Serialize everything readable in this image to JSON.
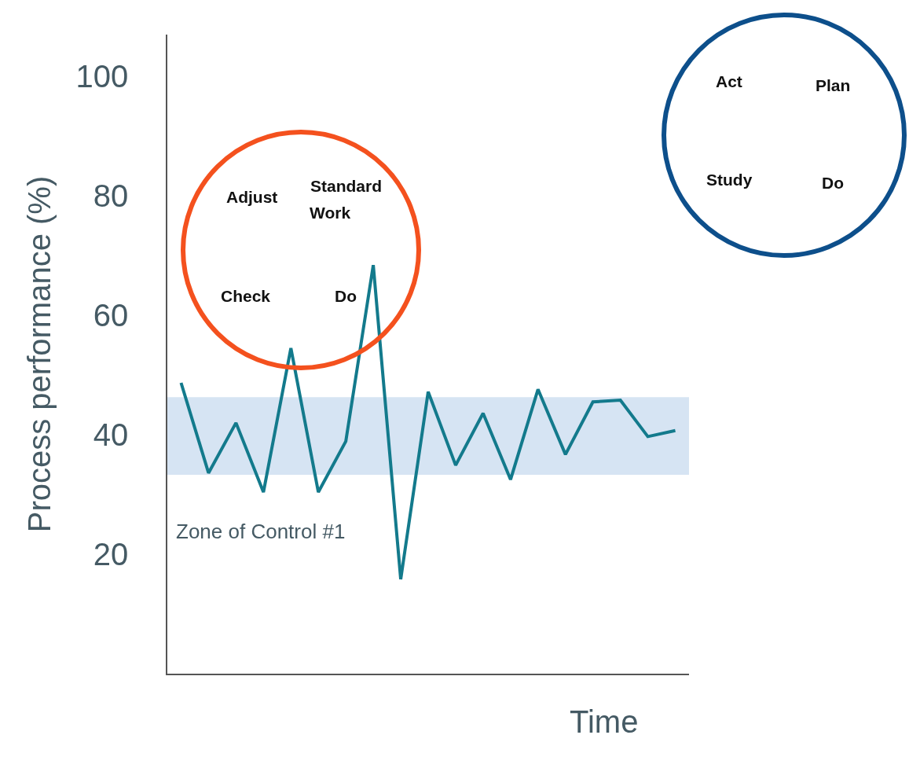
{
  "chart_data": {
    "type": "line",
    "xlabel": "Time",
    "ylabel": "Process performance (%)",
    "categories": [
      null,
      null,
      null,
      null,
      null,
      null,
      null,
      null,
      null,
      null,
      null,
      null,
      null,
      null,
      null,
      null,
      null,
      null,
      null
    ],
    "series": [
      {
        "color": "#137a8c",
        "values": [
          48.7,
          33.6,
          42.0,
          30.4,
          54.5,
          30.4,
          38.9,
          68.4,
          15.8,
          47.2,
          34.9,
          43.6,
          32.5,
          47.6,
          36.7,
          45.5,
          45.8,
          39.7,
          40.7
        ]
      }
    ],
    "ylim": [
      0,
      107
    ],
    "yticks": [
      20,
      40,
      60,
      80,
      100
    ],
    "tick_labels": "y",
    "grid": false,
    "marker": "none",
    "line_style": "solid",
    "bands": [
      {
        "axis": "y",
        "from": 33.3,
        "to": 46.3,
        "label": "Zone of Control #1",
        "color": "#d6e4f3"
      }
    ],
    "annotations": [
      "Adjust",
      "Standard",
      "Work",
      "Check",
      "Do",
      "Act",
      "Plan",
      "Study",
      "Do"
    ]
  }
}
